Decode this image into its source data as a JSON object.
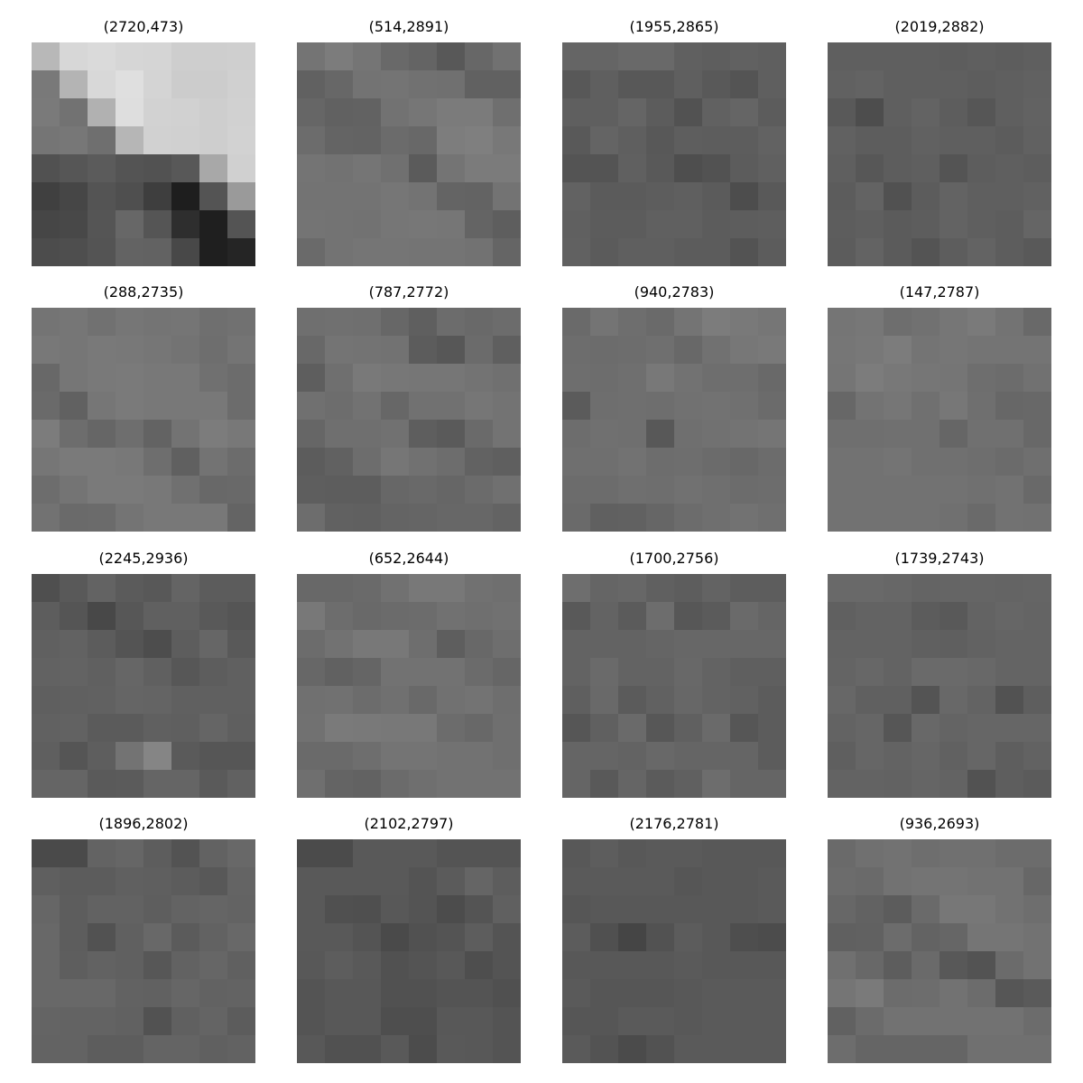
{
  "patches": [
    {
      "title": "(2720,473)",
      "pixels": [
        [
          184,
          215,
          218,
          214,
          213,
          206,
          206,
          207
        ],
        [
          121,
          180,
          216,
          223,
          212,
          204,
          204,
          208
        ],
        [
          122,
          114,
          177,
          222,
          210,
          209,
          206,
          209
        ],
        [
          117,
          119,
          111,
          182,
          209,
          208,
          206,
          210
        ],
        [
          81,
          86,
          91,
          84,
          82,
          88,
          168,
          208
        ],
        [
          64,
          70,
          84,
          79,
          62,
          30,
          84,
          154
        ],
        [
          70,
          72,
          85,
          103,
          85,
          46,
          31,
          84
        ],
        [
          76,
          78,
          84,
          99,
          98,
          72,
          31,
          37
        ]
      ]
    },
    {
      "title": "(514,2891)",
      "pixels": [
        [
          116,
          124,
          117,
          105,
          100,
          88,
          103,
          113
        ],
        [
          97,
          103,
          115,
          116,
          113,
          112,
          97,
          97
        ],
        [
          102,
          97,
          98,
          114,
          118,
          123,
          123,
          111
        ],
        [
          108,
          100,
          99,
          107,
          104,
          125,
          127,
          120
        ],
        [
          116,
          114,
          117,
          112,
          91,
          116,
          123,
          123
        ],
        [
          115,
          115,
          115,
          118,
          115,
          100,
          99,
          115
        ],
        [
          116,
          115,
          114,
          118,
          119,
          118,
          100,
          94
        ],
        [
          106,
          115,
          117,
          117,
          116,
          116,
          114,
          101
        ]
      ]
    },
    {
      "title": "(1955,2865)",
      "pixels": [
        [
          101,
          101,
          105,
          105,
          96,
          94,
          97,
          95
        ],
        [
          88,
          95,
          88,
          88,
          95,
          89,
          84,
          95
        ],
        [
          95,
          95,
          101,
          92,
          82,
          97,
          101,
          92
        ],
        [
          89,
          100,
          95,
          88,
          94,
          93,
          93,
          98
        ],
        [
          84,
          84,
          96,
          89,
          78,
          82,
          92,
          96
        ],
        [
          98,
          91,
          91,
          93,
          95,
          91,
          77,
          89
        ],
        [
          96,
          92,
          92,
          96,
          96,
          92,
          93,
          94
        ],
        [
          97,
          91,
          95,
          95,
          92,
          92,
          83,
          92
        ]
      ]
    },
    {
      "title": "(2019,2882)",
      "pixels": [
        [
          95,
          95,
          95,
          95,
          93,
          95,
          93,
          95
        ],
        [
          97,
          99,
          95,
          95,
          95,
          93,
          95,
          97
        ],
        [
          89,
          77,
          95,
          99,
          93,
          86,
          95,
          98
        ],
        [
          97,
          93,
          93,
          97,
          95,
          95,
          92,
          97
        ],
        [
          95,
          87,
          93,
          95,
          84,
          93,
          95,
          93
        ],
        [
          92,
          99,
          81,
          92,
          99,
          95,
          95,
          97
        ],
        [
          93,
          95,
          91,
          93,
          99,
          95,
          93,
          101
        ],
        [
          92,
          99,
          91,
          84,
          93,
          99,
          93,
          89
        ]
      ]
    },
    {
      "title": "(288,2735)",
      "pixels": [
        [
          116,
          118,
          113,
          118,
          116,
          117,
          111,
          113
        ],
        [
          120,
          118,
          121,
          120,
          118,
          115,
          110,
          116
        ],
        [
          104,
          118,
          121,
          122,
          120,
          120,
          112,
          108
        ],
        [
          106,
          97,
          118,
          122,
          120,
          120,
          120,
          108
        ],
        [
          124,
          109,
          102,
          110,
          99,
          115,
          124,
          120
        ],
        [
          118,
          122,
          122,
          120,
          110,
          96,
          115,
          108
        ],
        [
          109,
          116,
          122,
          122,
          120,
          112,
          104,
          105
        ],
        [
          114,
          106,
          107,
          116,
          120,
          120,
          120,
          100
        ]
      ]
    },
    {
      "title": "(787,2772)",
      "pixels": [
        [
          111,
          112,
          111,
          103,
          95,
          108,
          105,
          108
        ],
        [
          104,
          116,
          115,
          114,
          92,
          87,
          107,
          95
        ],
        [
          94,
          111,
          121,
          119,
          118,
          118,
          115,
          112
        ],
        [
          112,
          109,
          114,
          103,
          113,
          113,
          118,
          115
        ],
        [
          102,
          111,
          111,
          113,
          94,
          90,
          106,
          115
        ],
        [
          92,
          97,
          109,
          118,
          113,
          109,
          98,
          95
        ],
        [
          94,
          93,
          93,
          103,
          105,
          102,
          107,
          112
        ],
        [
          109,
          97,
          96,
          100,
          101,
          103,
          103,
          99
        ]
      ]
    },
    {
      "title": "(940,2783)",
      "pixels": [
        [
          106,
          116,
          110,
          106,
          116,
          124,
          121,
          118
        ],
        [
          109,
          108,
          109,
          111,
          104,
          113,
          119,
          121
        ],
        [
          110,
          109,
          111,
          120,
          114,
          110,
          110,
          105
        ],
        [
          91,
          110,
          111,
          110,
          113,
          114,
          112,
          107
        ],
        [
          109,
          112,
          111,
          88,
          111,
          113,
          115,
          117
        ],
        [
          111,
          111,
          114,
          109,
          110,
          107,
          104,
          108
        ],
        [
          108,
          108,
          111,
          110,
          113,
          111,
          108,
          109
        ],
        [
          106,
          96,
          97,
          102,
          108,
          111,
          114,
          111
        ]
      ]
    },
    {
      "title": "(147,2787)",
      "pixels": [
        [
          117,
          119,
          110,
          113,
          118,
          122,
          115,
          105
        ],
        [
          118,
          120,
          124,
          116,
          118,
          116,
          116,
          116
        ],
        [
          117,
          124,
          120,
          118,
          117,
          110,
          108,
          113
        ],
        [
          103,
          115,
          118,
          112,
          119,
          111,
          103,
          104
        ],
        [
          111,
          111,
          112,
          112,
          102,
          112,
          112,
          104
        ],
        [
          114,
          114,
          116,
          112,
          112,
          110,
          107,
          111
        ],
        [
          114,
          114,
          114,
          114,
          114,
          112,
          114,
          105
        ],
        [
          114,
          114,
          114,
          114,
          112,
          106,
          114,
          113
        ]
      ]
    },
    {
      "title": "(2245,2936)",
      "pixels": [
        [
          79,
          89,
          99,
          91,
          88,
          100,
          92,
          92
        ],
        [
          93,
          85,
          72,
          87,
          96,
          96,
          89,
          85
        ],
        [
          96,
          98,
          92,
          84,
          77,
          93,
          102,
          89
        ],
        [
          98,
          99,
          96,
          102,
          96,
          87,
          93,
          96
        ],
        [
          95,
          96,
          97,
          101,
          100,
          96,
          96,
          96
        ],
        [
          97,
          98,
          91,
          91,
          96,
          95,
          101,
          95
        ],
        [
          95,
          85,
          94,
          115,
          133,
          90,
          86,
          86
        ],
        [
          101,
          101,
          90,
          91,
          101,
          101,
          90,
          97
        ]
      ]
    },
    {
      "title": "(652,2644)",
      "pixels": [
        [
          104,
          104,
          106,
          113,
          120,
          120,
          113,
          111
        ],
        [
          120,
          109,
          105,
          107,
          108,
          113,
          111,
          113
        ],
        [
          108,
          114,
          120,
          120,
          110,
          94,
          104,
          110
        ],
        [
          103,
          97,
          101,
          114,
          114,
          114,
          107,
          102
        ],
        [
          112,
          113,
          108,
          112,
          105,
          113,
          115,
          110
        ],
        [
          113,
          122,
          121,
          120,
          120,
          108,
          104,
          111
        ],
        [
          106,
          106,
          110,
          116,
          116,
          114,
          114,
          111
        ],
        [
          111,
          100,
          98,
          107,
          111,
          114,
          114,
          114
        ]
      ]
    },
    {
      "title": "(1700,2756)",
      "pixels": [
        [
          110,
          101,
          103,
          96,
          93,
          99,
          93,
          93
        ],
        [
          89,
          99,
          91,
          109,
          87,
          91,
          106,
          101
        ],
        [
          99,
          99,
          99,
          101,
          103,
          103,
          103,
          103
        ],
        [
          99,
          106,
          99,
          99,
          104,
          99,
          95,
          95
        ],
        [
          95,
          105,
          91,
          97,
          103,
          99,
          97,
          92
        ],
        [
          86,
          96,
          106,
          87,
          96,
          106,
          86,
          92
        ],
        [
          101,
          101,
          99,
          104,
          101,
          101,
          101,
          92
        ],
        [
          101,
          89,
          101,
          91,
          96,
          109,
          101,
          101
        ]
      ]
    },
    {
      "title": "(1739,2743)",
      "pixels": [
        [
          105,
          105,
          103,
          100,
          101,
          101,
          100,
          101
        ],
        [
          96,
          99,
          99,
          92,
          89,
          99,
          102,
          100
        ],
        [
          99,
          99,
          99,
          96,
          95,
          98,
          100,
          100
        ],
        [
          100,
          103,
          99,
          106,
          106,
          104,
          100,
          100
        ],
        [
          103,
          96,
          96,
          84,
          104,
          99,
          82,
          94
        ],
        [
          99,
          102,
          86,
          104,
          100,
          102,
          102,
          102
        ],
        [
          95,
          102,
          99,
          102,
          97,
          102,
          94,
          98
        ],
        [
          99,
          99,
          98,
          101,
          99,
          82,
          94,
          91
        ]
      ]
    },
    {
      "title": "(1896,2802)",
      "pixels": [
        [
          74,
          74,
          99,
          102,
          93,
          83,
          98,
          104
        ],
        [
          95,
          92,
          92,
          96,
          95,
          92,
          88,
          100
        ],
        [
          102,
          93,
          98,
          98,
          94,
          99,
          101,
          99
        ],
        [
          104,
          93,
          82,
          96,
          104,
          91,
          98,
          104
        ],
        [
          104,
          94,
          98,
          96,
          87,
          98,
          102,
          96
        ],
        [
          104,
          104,
          104,
          98,
          97,
          102,
          98,
          99
        ],
        [
          100,
          99,
          99,
          97,
          82,
          96,
          100,
          92
        ],
        [
          99,
          99,
          93,
          93,
          100,
          100,
          96,
          98
        ]
      ]
    },
    {
      "title": "(2102,2797)",
      "pixels": [
        [
          75,
          75,
          89,
          89,
          89,
          84,
          84,
          84
        ],
        [
          89,
          89,
          89,
          89,
          84,
          91,
          101,
          93
        ],
        [
          89,
          80,
          79,
          88,
          84,
          76,
          84,
          96
        ],
        [
          89,
          89,
          84,
          74,
          81,
          84,
          93,
          84
        ],
        [
          88,
          93,
          89,
          81,
          84,
          88,
          78,
          84
        ],
        [
          84,
          88,
          88,
          81,
          81,
          84,
          84,
          80
        ],
        [
          84,
          88,
          88,
          78,
          78,
          88,
          88,
          84
        ],
        [
          88,
          81,
          81,
          89,
          76,
          89,
          88,
          84
        ]
      ]
    },
    {
      "title": "(2176,2781)",
      "pixels": [
        [
          88,
          93,
          88,
          90,
          90,
          88,
          88,
          88
        ],
        [
          90,
          90,
          90,
          90,
          86,
          88,
          88,
          90
        ],
        [
          86,
          88,
          88,
          88,
          88,
          88,
          88,
          90
        ],
        [
          92,
          80,
          69,
          82,
          92,
          88,
          78,
          76
        ],
        [
          88,
          88,
          88,
          88,
          90,
          88,
          88,
          88
        ],
        [
          90,
          86,
          86,
          86,
          88,
          90,
          90,
          90
        ],
        [
          86,
          86,
          90,
          90,
          88,
          90,
          90,
          90
        ],
        [
          90,
          83,
          75,
          82,
          90,
          90,
          90,
          90
        ]
      ]
    },
    {
      "title": "(936,2693)",
      "pixels": [
        [
          106,
          112,
          114,
          110,
          112,
          112,
          108,
          108
        ],
        [
          108,
          106,
          114,
          116,
          116,
          114,
          114,
          103
        ],
        [
          103,
          98,
          92,
          106,
          119,
          119,
          114,
          110
        ],
        [
          96,
          97,
          108,
          99,
          102,
          117,
          117,
          114
        ],
        [
          112,
          104,
          93,
          106,
          88,
          83,
          107,
          114
        ],
        [
          117,
          122,
          108,
          109,
          114,
          108,
          86,
          90
        ],
        [
          97,
          107,
          114,
          114,
          114,
          114,
          114,
          108
        ],
        [
          109,
          101,
          101,
          101,
          101,
          112,
          112,
          112
        ]
      ]
    }
  ]
}
